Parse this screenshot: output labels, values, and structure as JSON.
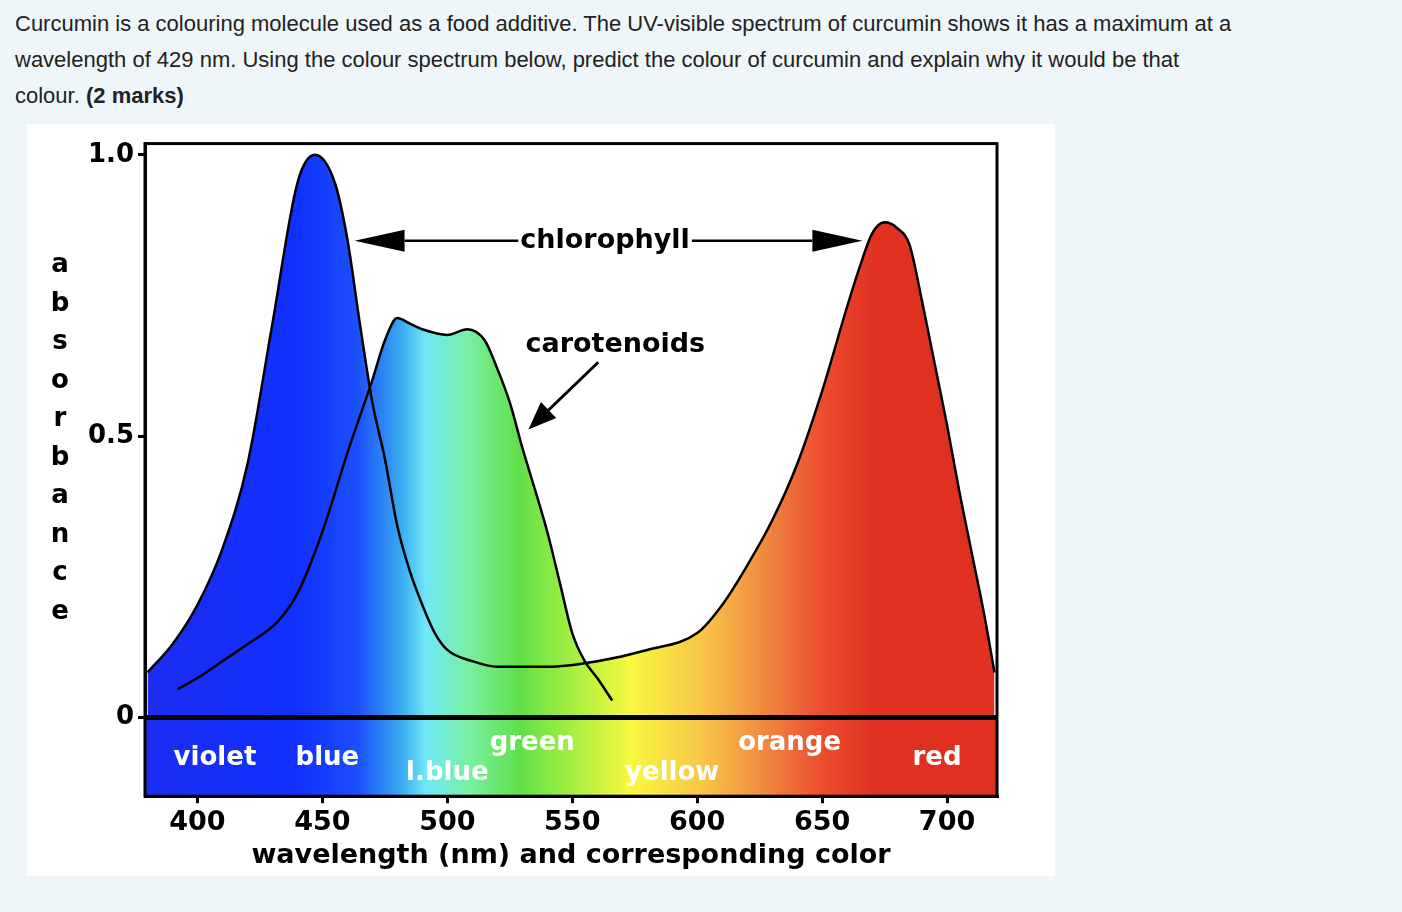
{
  "question": {
    "lines": [
      "Curcumin is a colouring molecule used as a food additive. The UV-visible spectrum of curcumin shows it has a maximum at a",
      "wavelength of 429 nm. Using the colour spectrum below, predict the colour of curcumin and explain why it would be that",
      "colour."
    ],
    "marks": "(2 marks)"
  },
  "chart_data": {
    "type": "line",
    "x_label": "wavelength (nm) and corresponding color",
    "y_label": "absorbance",
    "xlim": [
      379,
      720
    ],
    "xticks": [
      400,
      450,
      500,
      550,
      600,
      650,
      700
    ],
    "ylim": [
      -0.14,
      1.02
    ],
    "yticks": [
      0,
      0.5,
      {
        "value": 1,
        "label": "1.0"
      }
    ],
    "grid": false,
    "series": [
      {
        "name": "chlorophyll",
        "color": "#000000",
        "x": [
          380,
          390,
          400,
          410,
          420,
          430,
          440,
          447,
          455,
          460,
          465,
          470,
          475,
          480,
          485,
          490,
          495,
          500,
          510,
          520,
          540,
          560,
          580,
          600,
          610,
          620,
          630,
          640,
          650,
          660,
          665,
          670,
          675,
          680,
          685,
          690,
          695,
          700,
          705,
          710,
          715,
          719
        ],
        "values": [
          0.08,
          0.13,
          0.2,
          0.3,
          0.45,
          0.7,
          0.95,
          1.0,
          0.95,
          0.85,
          0.7,
          0.56,
          0.46,
          0.34,
          0.26,
          0.2,
          0.15,
          0.12,
          0.1,
          0.09,
          0.09,
          0.1,
          0.12,
          0.15,
          0.2,
          0.27,
          0.35,
          0.45,
          0.58,
          0.73,
          0.8,
          0.86,
          0.88,
          0.87,
          0.84,
          0.74,
          0.63,
          0.52,
          0.4,
          0.29,
          0.18,
          0.08
        ]
      },
      {
        "name": "carotenoids",
        "color": "#000000",
        "x": [
          392,
          400,
          410,
          420,
          432,
          440,
          450,
          460,
          470,
          475,
          480,
          485,
          490,
          500,
          508,
          515,
          520,
          525,
          530,
          540,
          545,
          550,
          555,
          560,
          566
        ],
        "values": [
          0.05,
          0.07,
          0.1,
          0.13,
          0.17,
          0.22,
          0.33,
          0.47,
          0.6,
          0.67,
          0.71,
          0.7,
          0.69,
          0.68,
          0.69,
          0.67,
          0.62,
          0.56,
          0.48,
          0.33,
          0.24,
          0.15,
          0.1,
          0.07,
          0.03
        ]
      }
    ],
    "color_band": [
      {
        "label": "violet",
        "x": 407
      },
      {
        "label": "blue",
        "x": 452
      },
      {
        "label": "l.blue",
        "x": 500
      },
      {
        "label": "green",
        "x": 534
      },
      {
        "label": "yellow",
        "x": 590
      },
      {
        "label": "orange",
        "x": 637
      },
      {
        "label": "red",
        "x": 696
      }
    ]
  }
}
